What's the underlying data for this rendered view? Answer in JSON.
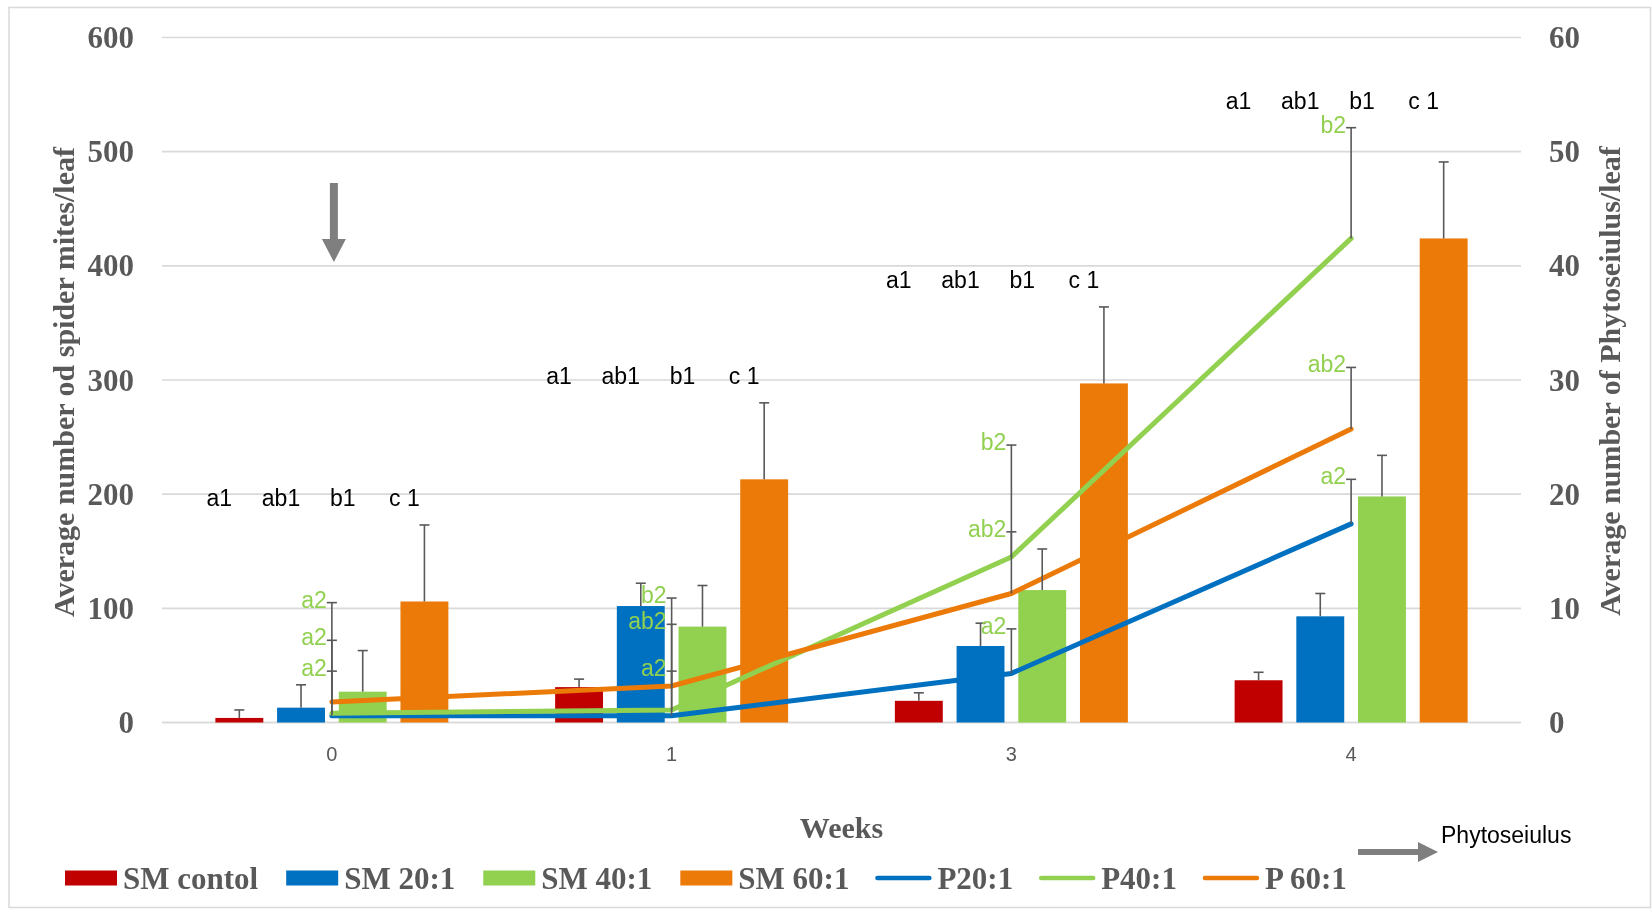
{
  "chart_data": {
    "type": "bar",
    "xlabel": "Weeks",
    "ylabel": "Average number od spider mites/leaf",
    "y2label": "Average number of Phytoseiulus/leaf",
    "categories": [
      "0",
      "1",
      "3",
      "4"
    ],
    "ylim": [
      0,
      600
    ],
    "yticks": [
      0,
      100,
      200,
      300,
      400,
      500,
      600
    ],
    "y2lim": [
      0,
      60
    ],
    "y2ticks": [
      0,
      10,
      20,
      30,
      40,
      50,
      60
    ],
    "grid": "y",
    "legend": "bottom",
    "series": [
      {
        "name": "SM contol",
        "color": "#c00000",
        "values": [
          4,
          31,
          19,
          37
        ],
        "errors": [
          [
            4,
            11
          ],
          [
            31,
            38
          ],
          [
            19,
            26
          ],
          [
            37,
            44
          ]
        ]
      },
      {
        "name": "SM 20:1",
        "color": "#0070c0",
        "values": [
          13,
          102,
          67,
          93
        ],
        "errors": [
          [
            13,
            33
          ],
          [
            102,
            122
          ],
          [
            67,
            87
          ],
          [
            93,
            113
          ]
        ]
      },
      {
        "name": "SM 40:1",
        "color": "#92d050",
        "values": [
          27,
          84,
          116,
          198
        ],
        "errors": [
          [
            27,
            63
          ],
          [
            84,
            120
          ],
          [
            116,
            152
          ],
          [
            198,
            234
          ]
        ]
      },
      {
        "name": "SM 60:1",
        "color": "#ec7a08",
        "values": [
          106,
          213,
          297,
          424
        ],
        "errors": [
          [
            106,
            173
          ],
          [
            213,
            280
          ],
          [
            297,
            364
          ],
          [
            424,
            491
          ]
        ]
      },
      {
        "name": "P20:1",
        "type": "line",
        "axis": "y2",
        "color": "#0070c0",
        "values": [
          0.6,
          0.6,
          4.3,
          17.4
        ],
        "errors": [
          [
            0.6,
            4.5
          ],
          [
            0.6,
            4.5
          ],
          [
            4.3,
            8.2
          ],
          [
            17.4,
            21.3
          ]
        ]
      },
      {
        "name": "P40:1",
        "type": "line",
        "axis": "y2",
        "color": "#92d050",
        "values": [
          0.8,
          1.1,
          14.5,
          42.4
        ],
        "errors": [
          [
            0.8,
            10.5
          ],
          [
            1.1,
            10.9
          ],
          [
            14.5,
            24.3
          ],
          [
            42.4,
            52.1
          ]
        ]
      },
      {
        "name": "P 60:1",
        "type": "line",
        "axis": "y2",
        "color": "#ec7a08",
        "values": [
          1.8,
          3.2,
          11.3,
          25.7
        ],
        "errors": [
          [
            1.8,
            7.2
          ],
          [
            3.2,
            8.6
          ],
          [
            11.3,
            16.7
          ],
          [
            25.7,
            31.1
          ]
        ]
      }
    ],
    "annotations": [
      "a1",
      "ab1",
      "b1",
      "c 1",
      "a2",
      "a2",
      "a2",
      "a1",
      "ab1",
      "b1",
      "c 1",
      "a2",
      "b2",
      "ab2",
      "a1",
      "ab1",
      "b1",
      "c 1",
      "a2",
      "b2",
      "ab2",
      "a1",
      "ab1",
      "b1",
      "c 1",
      "a2",
      "b2",
      "ab2",
      "Phytoseiulus"
    ]
  }
}
